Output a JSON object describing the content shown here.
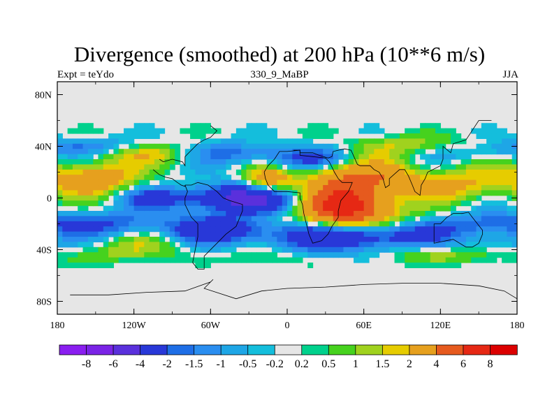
{
  "chart_data": {
    "type": "heatmap",
    "title": "Divergence (smoothed) at 200 hPa (10**6 m/s)",
    "subtitle_left": "Expt = teYdo",
    "subtitle_center": "330_9_MaBP",
    "subtitle_right": "JJA",
    "x_ticks": [
      {
        "value": -180,
        "label": "180"
      },
      {
        "value": -120,
        "label": "120W"
      },
      {
        "value": -60,
        "label": "60W"
      },
      {
        "value": 0,
        "label": "0"
      },
      {
        "value": 60,
        "label": "60E"
      },
      {
        "value": 120,
        "label": "120E"
      },
      {
        "value": 180,
        "label": "180"
      }
    ],
    "y_ticks": [
      {
        "value": 80,
        "label": "80N"
      },
      {
        "value": 40,
        "label": "40N"
      },
      {
        "value": 0,
        "label": "0"
      },
      {
        "value": -40,
        "label": "40S"
      },
      {
        "value": -80,
        "label": "80S"
      }
    ],
    "xlim": [
      -180,
      180
    ],
    "ylim": [
      -90,
      90
    ],
    "colorbar": {
      "labels": [
        "-8",
        "-6",
        "-4",
        "-2",
        "-1.5",
        "-1",
        "-0.5",
        "-0.2",
        "0.2",
        "0.5",
        "1",
        "1.5",
        "2",
        "4",
        "6",
        "8"
      ],
      "colors": [
        "#8a1ef0",
        "#7a23e6",
        "#5a30dc",
        "#2838d8",
        "#1e6ee6",
        "#2a8ef0",
        "#1ea6e6",
        "#14bedc",
        "#e6e6e6",
        "#00d18c",
        "#46d21e",
        "#a0d21e",
        "#e6cc00",
        "#e6a01e",
        "#e65a1e",
        "#e62814",
        "#dc0000"
      ]
    },
    "features": [
      {
        "name": "positive band 60E",
        "lon": [
          20,
          100
        ],
        "lat": [
          -20,
          20
        ],
        "sign": "positive",
        "max": 6
      },
      {
        "name": "north atlantic positive",
        "lon": [
          -20,
          10
        ],
        "lat": [
          0,
          20
        ],
        "sign": "positive",
        "max": 4
      },
      {
        "name": "pacific positive NH",
        "lon": [
          -180,
          -110
        ],
        "lat": [
          5,
          30
        ],
        "sign": "positive",
        "max": 4
      },
      {
        "name": "pacific positive east",
        "lon": [
          110,
          180
        ],
        "lat": [
          0,
          25
        ],
        "sign": "positive",
        "max": 2
      },
      {
        "name": "equatorial negative",
        "lon": [
          -80,
          0
        ],
        "lat": [
          -20,
          20
        ],
        "sign": "negative",
        "min": -6
      },
      {
        "name": "southern ocean negative",
        "lon": [
          0,
          100
        ],
        "lat": [
          -50,
          -20
        ],
        "sign": "negative",
        "min": -4
      },
      {
        "name": "subtropical negative SH",
        "lon": [
          -180,
          -60
        ],
        "lat": [
          -30,
          -10
        ],
        "sign": "negative",
        "min": -2
      }
    ]
  }
}
